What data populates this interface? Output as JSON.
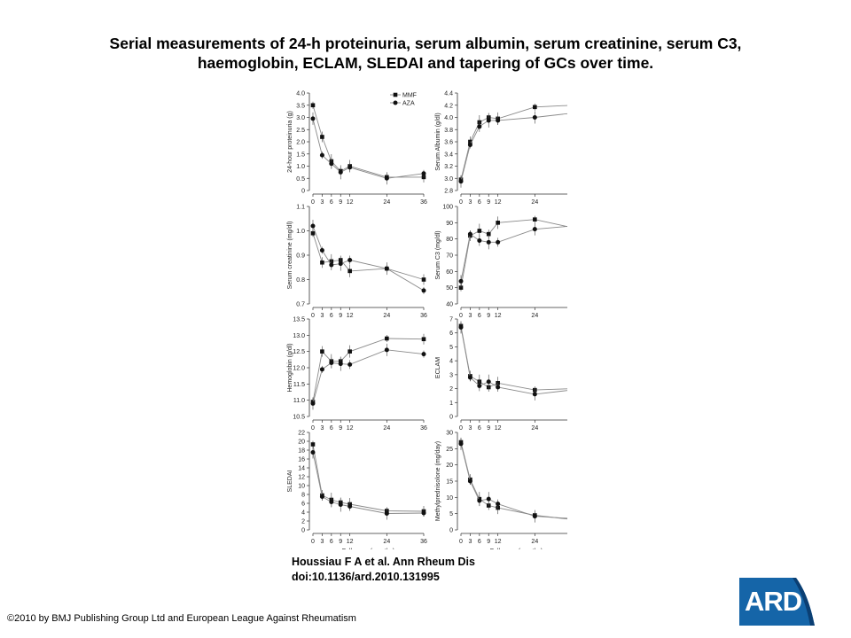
{
  "title": {
    "line1": "Serial measurements of 24-h proteinuria, serum albumin, serum creatinine, serum C3,",
    "line2": "haemoglobin, ECLAM, SLEDAI and tapering of GCs over time."
  },
  "citation": {
    "line1": "Houssiau F A et al. Ann Rheum Dis",
    "line2": "doi:10.1136/ard.2010.131995"
  },
  "copyright": "©2010 by BMJ Publishing Group Ltd and European League Against Rheumatism",
  "logo": {
    "text": "ARD",
    "color": "#1565a8"
  },
  "colors": {
    "series_line": "#8a8a8a",
    "marker": "#111111"
  },
  "chart_data": [
    {
      "type": "line",
      "ylabel": "24-hour proteinuria (g)",
      "x": [
        0,
        3,
        6,
        9,
        12,
        24,
        36
      ],
      "x_ticks": [
        "0",
        "3",
        "6",
        "9",
        "12",
        "24",
        "36"
      ],
      "ylim": [
        0,
        4.0
      ],
      "y_ticks": [
        "0",
        "0.5",
        "1.0",
        "1.5",
        "2.0",
        "2.5",
        "3.0",
        "3.5",
        "4.0"
      ],
      "legend": [
        "MMF",
        "AZA"
      ],
      "legend_position": "top-right",
      "series": [
        {
          "name": "MMF",
          "marker": "square",
          "values": [
            3.5,
            2.2,
            1.2,
            0.8,
            1.0,
            0.55,
            0.55
          ]
        },
        {
          "name": "AZA",
          "marker": "circle",
          "values": [
            2.95,
            1.45,
            1.1,
            0.75,
            0.95,
            0.5,
            0.7
          ]
        }
      ]
    },
    {
      "type": "line",
      "ylabel": "Serum Albumin (g/dl)",
      "x": [
        0,
        3,
        6,
        9,
        12,
        24,
        36
      ],
      "x_ticks": [
        "0",
        "3",
        "6",
        "9",
        "12",
        "24",
        "36"
      ],
      "ylim": [
        2.8,
        4.4
      ],
      "y_ticks": [
        "2.8",
        "3.0",
        "3.2",
        "3.4",
        "3.6",
        "3.8",
        "4.0",
        "4.2",
        "4.4"
      ],
      "series": [
        {
          "name": "MMF",
          "marker": "square",
          "values": [
            2.98,
            3.6,
            3.92,
            4.0,
            3.98,
            4.17,
            4.2
          ]
        },
        {
          "name": "AZA",
          "marker": "circle",
          "values": [
            2.95,
            3.55,
            3.85,
            3.95,
            3.95,
            4.0,
            4.07
          ]
        }
      ]
    },
    {
      "type": "line",
      "ylabel": "Serum creatinine (mg/dl)",
      "x": [
        0,
        3,
        6,
        9,
        12,
        24,
        36
      ],
      "x_ticks": [
        "0",
        "3",
        "6",
        "9",
        "12",
        "24",
        "36"
      ],
      "ylim": [
        0.7,
        1.1
      ],
      "y_ticks": [
        "0.7",
        "0.8",
        "0.9",
        "1.0",
        "1.1"
      ],
      "series": [
        {
          "name": "MMF",
          "marker": "square",
          "values": [
            0.99,
            0.87,
            0.875,
            0.88,
            0.835,
            0.845,
            0.8
          ]
        },
        {
          "name": "AZA",
          "marker": "circle",
          "values": [
            1.02,
            0.92,
            0.86,
            0.865,
            0.88,
            0.845,
            0.755
          ]
        }
      ]
    },
    {
      "type": "line",
      "ylabel": "Serum C3 (mg/dl)",
      "x": [
        0,
        3,
        6,
        9,
        12,
        24,
        36
      ],
      "x_ticks": [
        "0",
        "3",
        "6",
        "9",
        "12",
        "24",
        "36"
      ],
      "ylim": [
        40,
        100
      ],
      "y_ticks": [
        "40",
        "50",
        "60",
        "70",
        "80",
        "90",
        "100"
      ],
      "series": [
        {
          "name": "MMF",
          "marker": "square",
          "values": [
            50,
            82,
            85,
            83,
            90,
            92,
            87
          ]
        },
        {
          "name": "AZA",
          "marker": "circle",
          "values": [
            54,
            83,
            79,
            78,
            78,
            86,
            88
          ]
        }
      ]
    },
    {
      "type": "line",
      "ylabel": "Hemoglobin (g/dl)",
      "x": [
        0,
        3,
        6,
        9,
        12,
        24,
        36
      ],
      "x_ticks": [
        "0",
        "3",
        "6",
        "9",
        "12",
        "24",
        "36"
      ],
      "ylim": [
        10.5,
        13.5
      ],
      "y_ticks": [
        "10.5",
        "11.0",
        "11.5",
        "12.0",
        "12.5",
        "13.0",
        "13.5"
      ],
      "series": [
        {
          "name": "MMF",
          "marker": "square",
          "values": [
            10.95,
            12.5,
            12.2,
            12.2,
            12.5,
            12.9,
            12.88
          ]
        },
        {
          "name": "AZA",
          "marker": "circle",
          "values": [
            10.9,
            11.95,
            12.15,
            12.12,
            12.1,
            12.55,
            12.42
          ]
        }
      ]
    },
    {
      "type": "line",
      "ylabel": "ECLAM",
      "x": [
        0,
        3,
        6,
        9,
        12,
        24,
        36
      ],
      "x_ticks": [
        "0",
        "3",
        "6",
        "9",
        "12",
        "24",
        "36"
      ],
      "ylim": [
        0,
        7
      ],
      "y_ticks": [
        "0",
        "1",
        "2",
        "3",
        "4",
        "5",
        "6",
        "7"
      ],
      "series": [
        {
          "name": "MMF",
          "marker": "square",
          "values": [
            6.5,
            2.9,
            2.5,
            2.1,
            2.4,
            1.9,
            2.0
          ]
        },
        {
          "name": "AZA",
          "marker": "circle",
          "values": [
            6.4,
            2.8,
            2.2,
            2.5,
            2.1,
            1.6,
            1.9
          ]
        }
      ]
    },
    {
      "type": "line",
      "ylabel": "SLEDAI",
      "x": [
        0,
        3,
        6,
        9,
        12,
        24,
        36
      ],
      "x_ticks": [
        "0",
        "3",
        "6",
        "9",
        "12",
        "24",
        "36"
      ],
      "ylim": [
        0,
        22
      ],
      "y_ticks": [
        "0",
        "2",
        "4",
        "6",
        "8",
        "10",
        "12",
        "14",
        "16",
        "18",
        "20",
        "22"
      ],
      "xlabel": "Follow up (months)",
      "series": [
        {
          "name": "MMF",
          "marker": "square",
          "values": [
            19.3,
            7.8,
            6.8,
            6.2,
            5.8,
            4.3,
            4.2
          ]
        },
        {
          "name": "AZA",
          "marker": "circle",
          "values": [
            17.5,
            7.5,
            6.3,
            5.7,
            5.3,
            3.7,
            3.8
          ]
        }
      ]
    },
    {
      "type": "line",
      "ylabel": "Methylprednisolone (mg/day)",
      "x": [
        0,
        3,
        6,
        9,
        12,
        24,
        36
      ],
      "x_ticks": [
        "0",
        "3",
        "6",
        "9",
        "12",
        "24",
        "36"
      ],
      "ylim": [
        0,
        30
      ],
      "y_ticks": [
        "0",
        "5",
        "10",
        "15",
        "20",
        "25",
        "30"
      ],
      "xlabel": "Follow up (months)",
      "series": [
        {
          "name": "MMF",
          "marker": "square",
          "values": [
            27,
            15.5,
            9.5,
            7.5,
            6.8,
            4.5,
            3.2
          ]
        },
        {
          "name": "AZA",
          "marker": "circle",
          "values": [
            26.5,
            15.0,
            9.0,
            9.5,
            8.0,
            4.2,
            3.5
          ]
        }
      ]
    }
  ]
}
